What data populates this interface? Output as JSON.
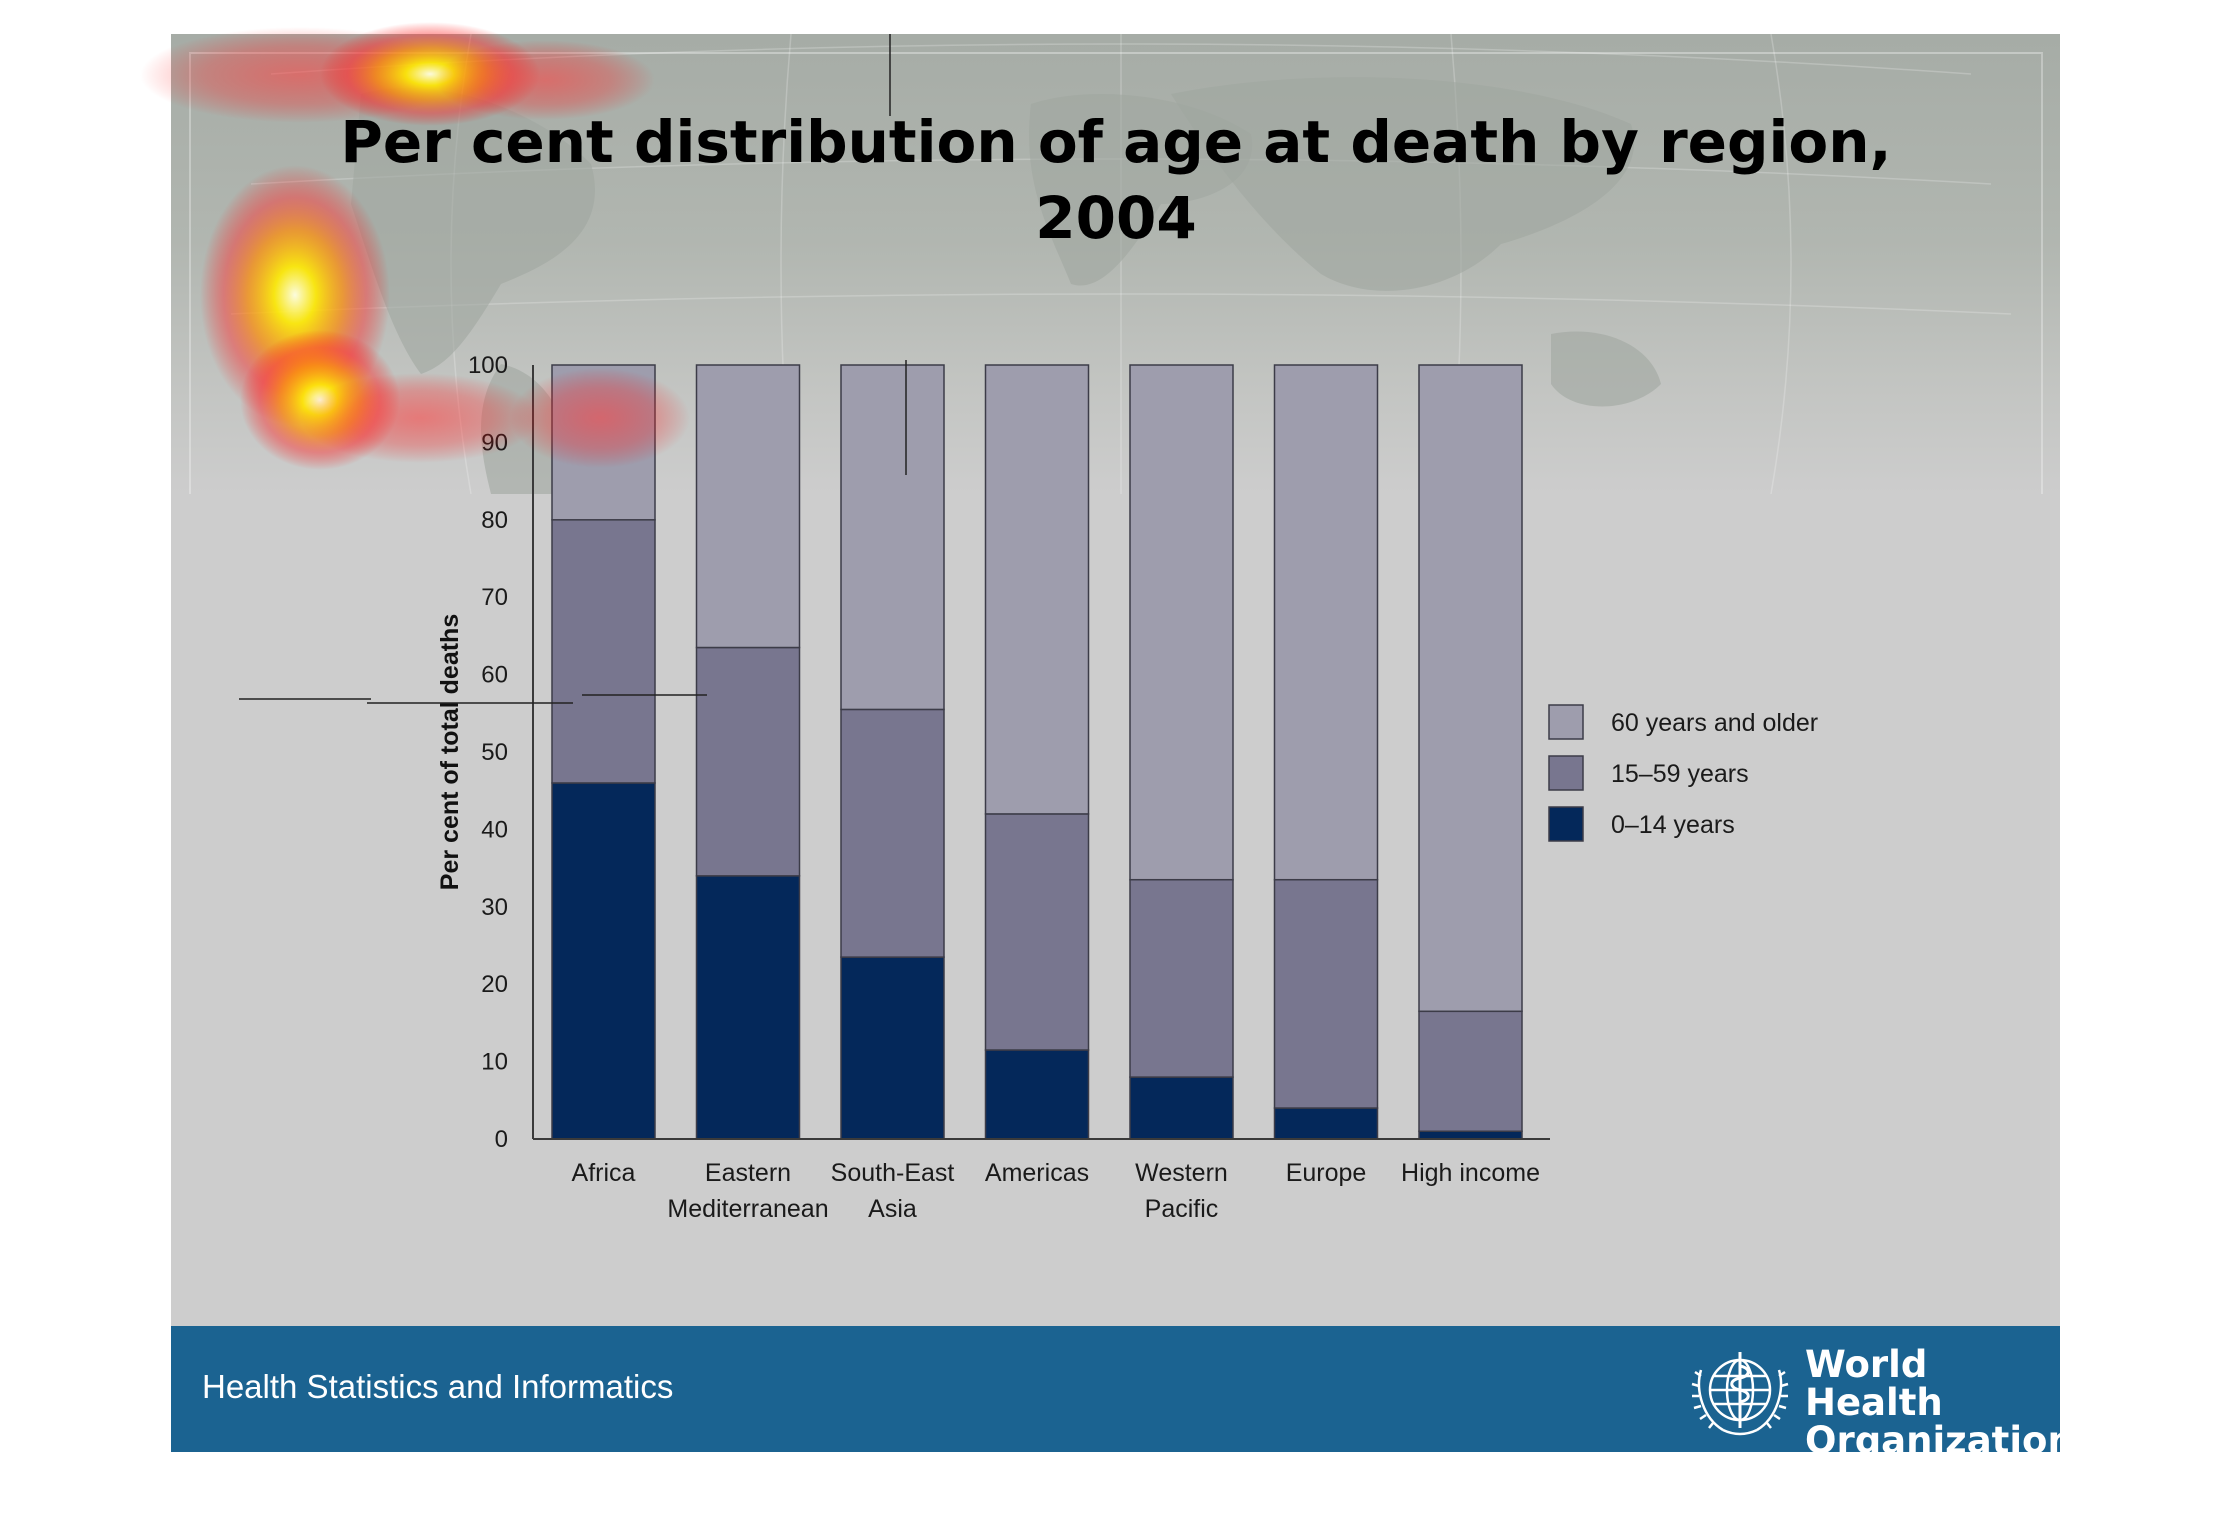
{
  "slide": {
    "title_line1": "Per cent distribution of age at death by region,",
    "title_line2": "2004",
    "footer_text": "Health Statistics and Informatics",
    "org_name_line1": "World Health",
    "org_name_line2": "Organization",
    "footer_color": "#1b6391"
  },
  "chart_data": {
    "type": "bar",
    "stacked": true,
    "title": "Per cent distribution of age at death by region, 2004",
    "xlabel": "",
    "ylabel": "Per cent of total deaths",
    "ylim": [
      0,
      100
    ],
    "yticks": [
      "0",
      "10",
      "20",
      "30",
      "40",
      "50",
      "60",
      "70",
      "80",
      "90",
      "100"
    ],
    "grid": false,
    "legend_position": "right",
    "categories": [
      [
        "Africa"
      ],
      [
        "Eastern",
        "Mediterranean"
      ],
      [
        "South-East",
        "Asia"
      ],
      [
        "Americas"
      ],
      [
        "Western",
        "Pacific"
      ],
      [
        "Europe"
      ],
      [
        "High income"
      ]
    ],
    "series": [
      {
        "name": "0–14 years",
        "color": "#04285a",
        "values": [
          46,
          34,
          23.5,
          11.5,
          8,
          4,
          1
        ]
      },
      {
        "name": "15–59 years",
        "color": "#78768f",
        "values": [
          34,
          29.5,
          32,
          30.5,
          25.5,
          29.5,
          15.5
        ]
      },
      {
        "name": "60 years and older",
        "color": "#9e9dad",
        "values": [
          20,
          36.5,
          44.5,
          58,
          66.5,
          66.5,
          83.5
        ]
      }
    ],
    "legend_order": [
      "60 years and older",
      "15–59 years",
      "0–14 years"
    ]
  }
}
